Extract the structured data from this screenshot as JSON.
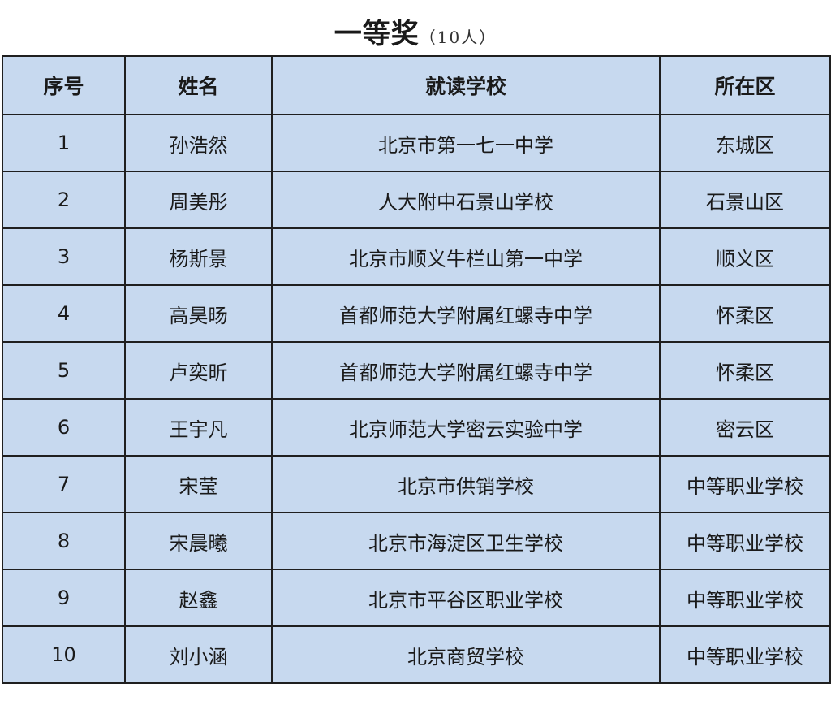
{
  "title": {
    "main": "一等奖",
    "count": "（10人）"
  },
  "table": {
    "headers": [
      "序号",
      "姓名",
      "就读学校",
      "所在区"
    ],
    "rows": [
      [
        "1",
        "孙浩然",
        "北京市第一七一中学",
        "东城区"
      ],
      [
        "2",
        "周美彤",
        "人大附中石景山学校",
        "石景山区"
      ],
      [
        "3",
        "杨斯景",
        "北京市顺义牛栏山第一中学",
        "顺义区"
      ],
      [
        "4",
        "高昊旸",
        "首都师范大学附属红螺寺中学",
        "怀柔区"
      ],
      [
        "5",
        "卢奕昕",
        "首都师范大学附属红螺寺中学",
        "怀柔区"
      ],
      [
        "6",
        "王宇凡",
        "北京师范大学密云实验中学",
        "密云区"
      ],
      [
        "7",
        "宋莹",
        "北京市供销学校",
        "中等职业学校"
      ],
      [
        "8",
        "宋晨曦",
        "北京市海淀区卫生学校",
        "中等职业学校"
      ],
      [
        "9",
        "赵鑫",
        "北京市平谷区职业学校",
        "中等职业学校"
      ],
      [
        "10",
        "刘小涵",
        "北京商贸学校",
        "中等职业学校"
      ]
    ]
  },
  "colors": {
    "table_bg": "#c7d9ef",
    "border": "#1f1f1f"
  }
}
